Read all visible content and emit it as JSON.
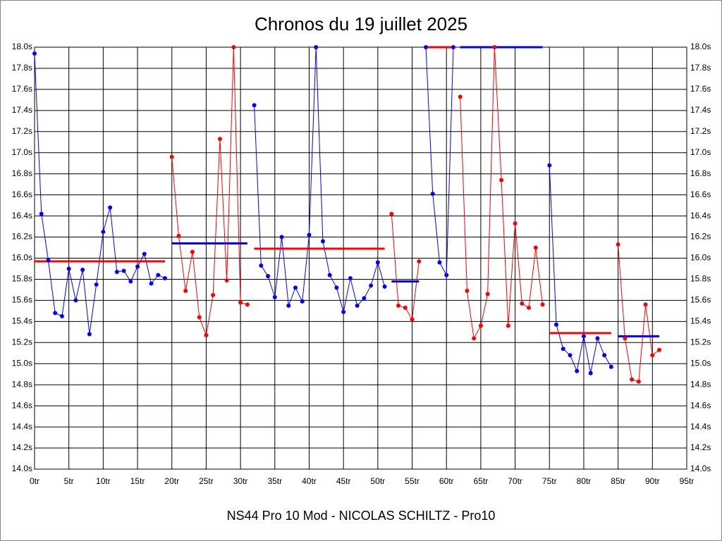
{
  "chart_data": {
    "type": "line",
    "title": "Chronos du 19 juillet 2025",
    "subtitle": "NS44 Pro 10 Mod - NICOLAS SCHILTZ - Pro10",
    "xlim": [
      0,
      95
    ],
    "ylim": [
      14,
      18
    ],
    "grid": true,
    "xticks": [
      {
        "value": 0,
        "label": "0tr"
      },
      {
        "value": 5,
        "label": "5tr"
      },
      {
        "value": 10,
        "label": "10tr"
      },
      {
        "value": 15,
        "label": "15tr"
      },
      {
        "value": 20,
        "label": "20tr"
      },
      {
        "value": 25,
        "label": "25tr"
      },
      {
        "value": 30,
        "label": "30tr"
      },
      {
        "value": 35,
        "label": "35tr"
      },
      {
        "value": 40,
        "label": "40tr"
      },
      {
        "value": 45,
        "label": "45tr"
      },
      {
        "value": 50,
        "label": "50tr"
      },
      {
        "value": 55,
        "label": "55tr"
      },
      {
        "value": 60,
        "label": "60tr"
      },
      {
        "value": 65,
        "label": "65tr"
      },
      {
        "value": 70,
        "label": "70tr"
      },
      {
        "value": 75,
        "label": "75tr"
      },
      {
        "value": 80,
        "label": "80tr"
      },
      {
        "value": 85,
        "label": "85tr"
      },
      {
        "value": 90,
        "label": "90tr"
      },
      {
        "value": 95,
        "label": "95tr"
      }
    ],
    "yticks": [
      {
        "value": 14.0,
        "label": "14.0s"
      },
      {
        "value": 14.2,
        "label": "14.2s"
      },
      {
        "value": 14.4,
        "label": "14.4s"
      },
      {
        "value": 14.6,
        "label": "14.6s"
      },
      {
        "value": 14.8,
        "label": "14.8s"
      },
      {
        "value": 15.0,
        "label": "15.0s"
      },
      {
        "value": 15.2,
        "label": "15.2s"
      },
      {
        "value": 15.4,
        "label": "15.4s"
      },
      {
        "value": 15.6,
        "label": "15.6s"
      },
      {
        "value": 15.8,
        "label": "15.8s"
      },
      {
        "value": 16.0,
        "label": "16.0s"
      },
      {
        "value": 16.2,
        "label": "16.2s"
      },
      {
        "value": 16.4,
        "label": "16.4s"
      },
      {
        "value": 16.6,
        "label": "16.6s"
      },
      {
        "value": 16.8,
        "label": "16.8s"
      },
      {
        "value": 17.0,
        "label": "17.0s"
      },
      {
        "value": 17.2,
        "label": "17.2s"
      },
      {
        "value": 17.4,
        "label": "17.4s"
      },
      {
        "value": 17.6,
        "label": "17.6s"
      },
      {
        "value": 17.8,
        "label": "17.8s"
      },
      {
        "value": 18.0,
        "label": "18.0s"
      }
    ],
    "series": [
      {
        "color": "#0000ff",
        "x": [
          0,
          1,
          2,
          3,
          4,
          5,
          6,
          7,
          8,
          9,
          10,
          11,
          12,
          13,
          14,
          15,
          16,
          17,
          18,
          19
        ],
        "values": [
          17.94,
          16.42,
          15.98,
          15.48,
          15.45,
          15.9,
          15.6,
          15.89,
          15.28,
          15.75,
          16.25,
          16.48,
          15.87,
          15.88,
          15.78,
          15.92,
          16.04,
          15.76,
          15.84,
          15.81
        ],
        "average": {
          "value": 15.97,
          "color": "#ff0000"
        }
      },
      {
        "color": "#ff0000",
        "x": [
          20,
          21,
          22,
          23,
          24,
          25,
          26,
          27,
          28,
          29,
          30,
          31
        ],
        "values": [
          16.96,
          16.21,
          15.69,
          16.06,
          15.44,
          15.27,
          15.65,
          17.13,
          15.79,
          18.0,
          15.58,
          15.56
        ],
        "average": {
          "value": 16.14,
          "color": "#0000ff"
        }
      },
      {
        "color": "#0000ff",
        "x": [
          32,
          33,
          34,
          35,
          36,
          37,
          38,
          39,
          40,
          41,
          42,
          43,
          44,
          45,
          46,
          47,
          48,
          49,
          50,
          51
        ],
        "values": [
          17.45,
          15.93,
          15.83,
          15.63,
          16.2,
          15.55,
          15.72,
          15.59,
          16.22,
          18.0,
          16.16,
          15.84,
          15.72,
          15.49,
          15.81,
          15.55,
          15.62,
          15.74,
          15.96,
          15.73
        ],
        "average": {
          "value": 16.09,
          "color": "#ff0000"
        }
      },
      {
        "color": "#ff0000",
        "x": [
          52,
          53,
          54,
          55,
          56
        ],
        "values": [
          16.42,
          15.55,
          15.53,
          15.42,
          15.97
        ],
        "average": {
          "value": 15.78,
          "color": "#0000ff"
        }
      },
      {
        "color": "#0000ff",
        "x": [
          57,
          58,
          59,
          60,
          61
        ],
        "values": [
          18.0,
          16.61,
          15.96,
          15.84,
          18.0
        ],
        "average": {
          "value": 18.0,
          "color": "#ff0000"
        }
      },
      {
        "color": "#ff0000",
        "x": [
          62,
          63,
          64,
          65,
          66,
          67,
          68,
          69,
          70,
          71,
          72,
          73,
          74
        ],
        "values": [
          17.53,
          15.69,
          15.24,
          15.36,
          15.66,
          18.0,
          16.74,
          15.36,
          16.33,
          15.57,
          15.53,
          16.1,
          15.56
        ],
        "average": {
          "value": 18.0,
          "color": "#0000ff"
        }
      },
      {
        "color": "#0000ff",
        "x": [
          75,
          76,
          77,
          78,
          79,
          80,
          81,
          82,
          83,
          84
        ],
        "values": [
          16.88,
          15.37,
          15.14,
          15.08,
          14.93,
          15.26,
          14.91,
          15.24,
          15.08,
          14.97
        ],
        "average": {
          "value": 15.29,
          "color": "#ff0000"
        }
      },
      {
        "color": "#ff0000",
        "x": [
          85,
          86,
          87,
          88,
          89,
          90,
          91
        ],
        "values": [
          16.13,
          15.24,
          14.85,
          14.83,
          15.56,
          15.08,
          15.13
        ],
        "average": {
          "value": 15.26,
          "color": "#0000ff"
        }
      }
    ]
  }
}
